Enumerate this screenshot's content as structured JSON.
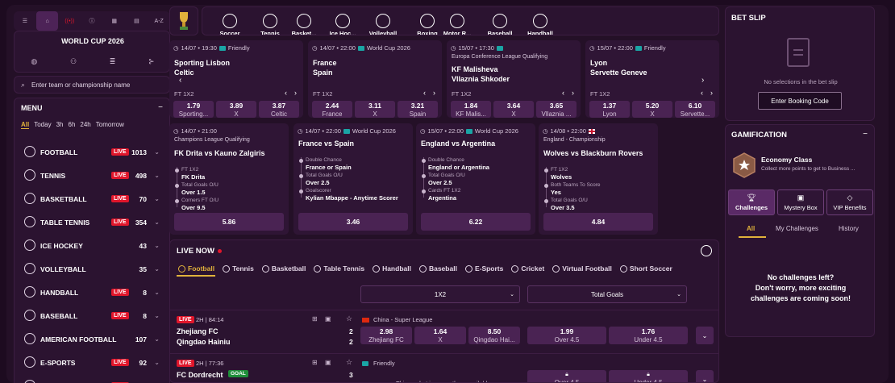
{
  "nav": {
    "az": "A-Z"
  },
  "world_cup": {
    "title": "WORLD CUP 2026"
  },
  "search": {
    "placeholder": "Enter team or championship name"
  },
  "menu": {
    "title": "MENU",
    "collapse": "−",
    "filters": [
      "All",
      "Today",
      "3h",
      "6h",
      "24h",
      "Tomorrow"
    ],
    "items": [
      {
        "label": "FOOTBALL",
        "live": "LIVE",
        "count": "1013",
        "icon": "football-icon"
      },
      {
        "label": "TENNIS",
        "live": "LIVE",
        "count": "498",
        "icon": "tennis-icon"
      },
      {
        "label": "BASKETBALL",
        "live": "LIVE",
        "count": "70",
        "icon": "basketball-icon"
      },
      {
        "label": "TABLE TENNIS",
        "live": "LIVE",
        "count": "354",
        "icon": "table-tennis-icon"
      },
      {
        "label": "ICE HOCKEY",
        "live": "",
        "count": "43",
        "icon": "ice-hockey-icon"
      },
      {
        "label": "VOLLEYBALL",
        "live": "",
        "count": "35",
        "icon": "volleyball-icon"
      },
      {
        "label": "HANDBALL",
        "live": "LIVE",
        "count": "8",
        "icon": "handball-icon"
      },
      {
        "label": "BASEBALL",
        "live": "LIVE",
        "count": "8",
        "icon": "baseball-icon"
      },
      {
        "label": "AMERICAN FOOTBALL",
        "live": "",
        "count": "107",
        "icon": "american-football-icon"
      },
      {
        "label": "E-SPORTS",
        "live": "LIVE",
        "count": "92",
        "icon": "esports-icon"
      },
      {
        "label": "",
        "live": "LIVE",
        "count": "",
        "icon": "sport-icon"
      }
    ]
  },
  "sports": [
    "Soccer",
    "Tennis",
    "Basket...",
    "Ice Hoc...",
    "Volleyball",
    "Boxing",
    "Motor R...",
    "Baseball",
    "Handball"
  ],
  "top_matches": [
    {
      "time": "14/07 • 19:30",
      "comp": "Friendly",
      "league": "",
      "home": "Sporting Lisbon",
      "away": "Celtic",
      "market": "FT 1X2",
      "odds": [
        [
          "1.79",
          "Sporting..."
        ],
        [
          "3.89",
          "X"
        ],
        [
          "3.87",
          "Celtic"
        ]
      ]
    },
    {
      "time": "14/07 • 22:00",
      "comp": "World Cup 2026",
      "league": "",
      "home": "France",
      "away": "Spain",
      "market": "FT 1X2",
      "odds": [
        [
          "2.44",
          "France"
        ],
        [
          "3.11",
          "X"
        ],
        [
          "3.21",
          "Spain"
        ]
      ]
    },
    {
      "time": "15/07 • 17:30",
      "comp": "",
      "league": "Europa Conference League Qualifying",
      "home": "KF Malisheva",
      "away": "Vllaznia Shkoder",
      "market": "FT 1X2",
      "odds": [
        [
          "1.84",
          "KF Malis..."
        ],
        [
          "3.64",
          "X"
        ],
        [
          "3.65",
          "Vllaznia ..."
        ]
      ]
    },
    {
      "time": "15/07 • 22:00",
      "comp": "Friendly",
      "league": "",
      "home": "Lyon",
      "away": "Servette Geneve",
      "market": "FT 1X2",
      "odds": [
        [
          "1.37",
          "Lyon"
        ],
        [
          "5.20",
          "X"
        ],
        [
          "6.10",
          "Servette..."
        ]
      ]
    }
  ],
  "specials": [
    {
      "time": "14/07 • 21:00",
      "comp": "",
      "league": "Champions League Qualifying",
      "title": "FK Drita vs Kauno Zalgiris",
      "lines": [
        [
          "FT 1X2",
          "FK Drita"
        ],
        [
          "Total Goals O/U",
          "Over 1.5"
        ],
        [
          "Corners FT O/U",
          "Over 9.5"
        ]
      ],
      "odds": "5.86"
    },
    {
      "time": "14/07 • 22:00",
      "comp": "World Cup 2026",
      "league": "",
      "title": "France vs Spain",
      "lines": [
        [
          "Double Chance",
          "France or Spain"
        ],
        [
          "Total Goals O/U",
          "Over 2.5"
        ],
        [
          "Goalscorer",
          "Kylian Mbappe - Anytime Scorer"
        ]
      ],
      "odds": "3.46"
    },
    {
      "time": "15/07 • 22:00",
      "comp": "World Cup 2026",
      "league": "",
      "title": "England vs Argentina",
      "lines": [
        [
          "Double Chance",
          "England or Argentina"
        ],
        [
          "Total Goals O/U",
          "Over 2.5"
        ],
        [
          "Cards FT 1X2",
          "Argentina"
        ]
      ],
      "odds": "6.22"
    },
    {
      "time": "14/08 • 22:00",
      "comp": "",
      "league": "England - Championship",
      "title": "Wolves vs Blackburn Rovers",
      "lines": [
        [
          "FT 1X2",
          "Wolves"
        ],
        [
          "Both Teams To Score",
          "Yes"
        ],
        [
          "Total Goals O/U",
          "Over 3.5"
        ]
      ],
      "odds": "4.84"
    }
  ],
  "live": {
    "title": "LIVE NOW",
    "tabs": [
      "Football",
      "Tennis",
      "Basketball",
      "Table Tennis",
      "Handball",
      "Baseball",
      "E-Sports",
      "Cricket",
      "Virtual Football",
      "Short Soccer"
    ],
    "select1": "1X2",
    "select2": "Total Goals",
    "matches": [
      {
        "live": "LIVE",
        "time": "2H | 84:14",
        "league": "China - Super League",
        "home": "Zhejiang FC",
        "away": "Qingdao Hainiu",
        "sh": "2",
        "sa": "2",
        "odds": [
          [
            "2.98",
            "Zhejiang FC"
          ],
          [
            "1.64",
            "X"
          ],
          [
            "8.50",
            "Qingdao Hai..."
          ]
        ],
        "tg": [
          [
            "1.99",
            "Over 4.5"
          ],
          [
            "1.76",
            "Under 4.5"
          ]
        ]
      },
      {
        "live": "LIVE",
        "time": "2H | 77:36",
        "league": "Friendly",
        "home": "FC Dordrecht",
        "goal": "GOAL",
        "away": "",
        "sh": "3",
        "sa": "",
        "unavailable": "This market is currently unavailable",
        "tg": [
          [
            "",
            "Over 4.5"
          ],
          [
            "",
            "Under 4.5"
          ]
        ]
      }
    ]
  },
  "betslip": {
    "title": "BET SLIP",
    "empty": "No selections in the bet slip",
    "booking": "Enter Booking Code"
  },
  "gamification": {
    "title": "GAMIFICATION",
    "collapse": "−",
    "level": "Economy Class",
    "level_sub": "Collect more points to get to Business ...",
    "tabs": [
      "Challenges",
      "Mystery Box",
      "VIP Benefits"
    ],
    "subtabs": [
      "All",
      "My Challenges",
      "History"
    ],
    "empty": [
      "No challenges left?",
      "Don't worry, more exciting",
      "challenges are coming soon!"
    ]
  }
}
